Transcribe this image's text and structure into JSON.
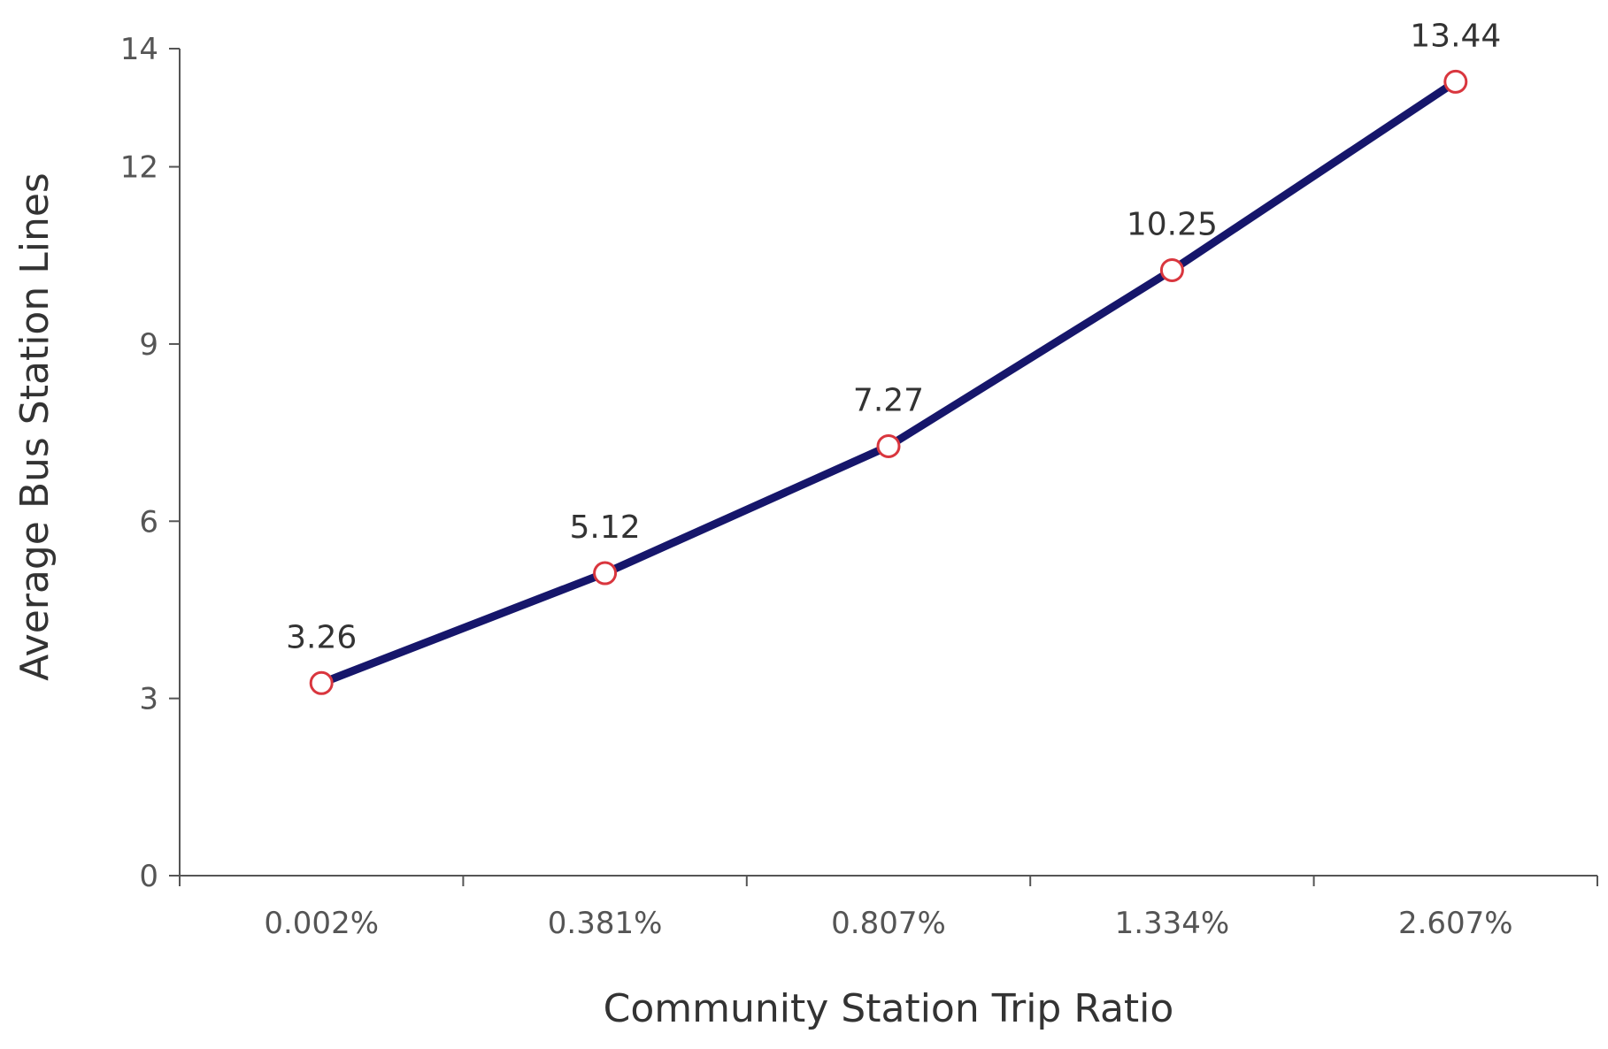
{
  "chart_data": {
    "type": "line",
    "title": "",
    "xlabel": "Community Station Trip Ratio",
    "ylabel": "Average Bus Station Lines",
    "categories": [
      "0.002%",
      "0.381%",
      "0.807%",
      "1.334%",
      "2.607%"
    ],
    "series": [
      {
        "values": [
          3.26,
          5.12,
          7.27,
          10.25,
          13.44
        ],
        "data_labels": [
          "3.26",
          "5.12",
          "7.27",
          "10.25",
          "13.44"
        ]
      }
    ],
    "yticks": [
      0,
      3,
      6,
      9,
      12,
      14
    ],
    "ytick_labels": [
      "0",
      "3",
      "6",
      "9",
      "12",
      "14"
    ],
    "ylim": [
      0,
      14
    ],
    "grid": false,
    "legend": "none",
    "colors": {
      "line": "#16166b",
      "marker_stroke": "#d9363e",
      "marker_fill": "#ffffff",
      "axis": "#555555"
    }
  }
}
